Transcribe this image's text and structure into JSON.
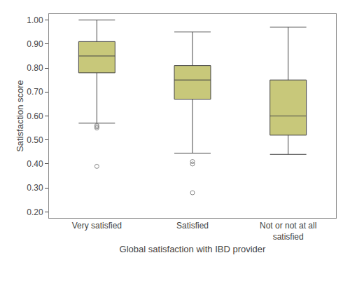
{
  "chart_data": {
    "type": "box",
    "xlabel": "Global satisfaction with IBD provider",
    "ylabel": "Satisfaction score",
    "categories": [
      "Very satisfied",
      "Satisfied",
      "Not or not at all\nsatisfied"
    ],
    "q1": [
      0.78,
      0.67,
      0.52
    ],
    "median": [
      0.85,
      0.75,
      0.6
    ],
    "q3": [
      0.91,
      0.81,
      0.75
    ],
    "whisker_low": [
      0.57,
      0.445,
      0.44
    ],
    "whisker_high": [
      1.0,
      0.95,
      0.97
    ],
    "outliers": [
      [
        0.55,
        0.555,
        0.56,
        0.39
      ],
      [
        0.41,
        0.4,
        0.28
      ],
      []
    ],
    "color": "#c8c87a",
    "ylim": [
      0.175,
      1.025
    ],
    "yticks": [
      {
        "value": 0.2,
        "label": "0.20"
      },
      {
        "value": 0.3,
        "label": "0.30"
      },
      {
        "value": 0.4,
        "label": "0.40"
      },
      {
        "value": 0.5,
        "label": "0.50"
      },
      {
        "value": 0.6,
        "label": "0.60"
      },
      {
        "value": 0.7,
        "label": "0.70"
      },
      {
        "value": 0.8,
        "label": "0.80"
      },
      {
        "value": 0.9,
        "label": "0.90"
      },
      {
        "value": 1.0,
        "label": "1.00"
      }
    ],
    "grid": false
  }
}
